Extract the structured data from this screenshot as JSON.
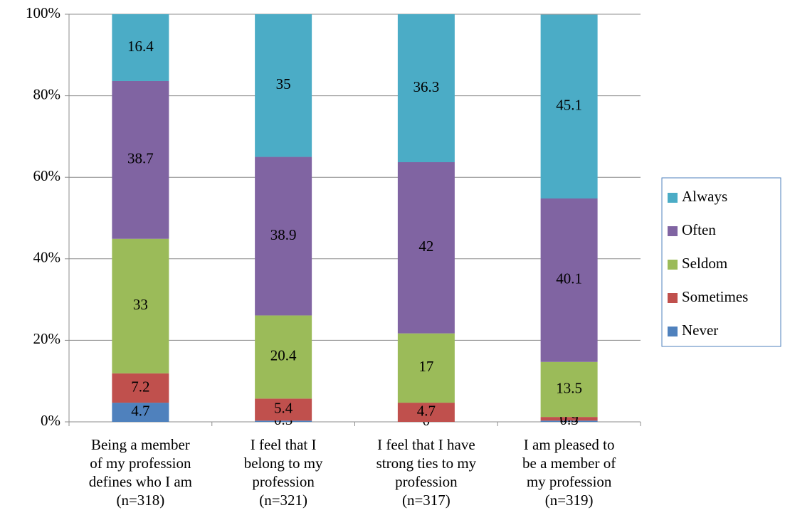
{
  "chart_data": {
    "type": "stacked_bar",
    "categories": [
      "Being a member\nof my profession\ndefines who I am\n(n=318)",
      "I feel that I\nbelong to my\nprofession\n(n=321)",
      "I feel that I have\nstrong ties to my\nprofession\n(n=317)",
      "I am pleased to\nbe a member of\nmy profession\n(n=319)"
    ],
    "series": [
      {
        "name": "Never",
        "color": "#4f81bd",
        "values": [
          4.7,
          0.3,
          0,
          0.3
        ]
      },
      {
        "name": "Sometimes",
        "color": "#c0504d",
        "values": [
          7.2,
          5.4,
          4.7,
          0.9
        ]
      },
      {
        "name": "Seldom",
        "color": "#9bbb59",
        "values": [
          33,
          20.4,
          17,
          13.5
        ]
      },
      {
        "name": "Often",
        "color": "#8064a2",
        "values": [
          38.7,
          38.9,
          42,
          40.1
        ]
      },
      {
        "name": "Always",
        "color": "#4bacc6",
        "values": [
          16.4,
          35,
          36.3,
          45.1
        ]
      }
    ],
    "ylim": [
      0,
      100
    ],
    "yticks": [
      {
        "value": 0,
        "label": "0%"
      },
      {
        "value": 20,
        "label": "20%"
      },
      {
        "value": 40,
        "label": "40%"
      },
      {
        "value": 60,
        "label": "60%"
      },
      {
        "value": 80,
        "label": "80%"
      },
      {
        "value": 100,
        "label": "100%"
      }
    ],
    "grid": true,
    "legend": "right"
  }
}
